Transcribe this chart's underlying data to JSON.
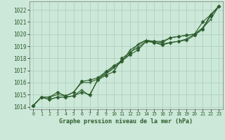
{
  "xlabel": "Graphe pression niveau de la mer (hPa)",
  "ylim": [
    1013.8,
    1022.7
  ],
  "xlim": [
    -0.5,
    23.5
  ],
  "yticks": [
    1014,
    1015,
    1016,
    1017,
    1018,
    1019,
    1020,
    1021,
    1022
  ],
  "xticks": [
    0,
    1,
    2,
    3,
    4,
    5,
    6,
    7,
    8,
    9,
    10,
    11,
    12,
    13,
    14,
    15,
    16,
    17,
    18,
    19,
    20,
    21,
    22,
    23
  ],
  "background_color": "#cce8d8",
  "grid_color": "#aaccbb",
  "line_color": "#2d5e2d",
  "series": [
    [
      1014.1,
      1014.8,
      1014.8,
      1015.2,
      1014.9,
      1015.2,
      1016.1,
      1016.2,
      1016.4,
      1016.9,
      1017.4,
      1017.8,
      1018.3,
      1018.7,
      1019.4,
      1019.4,
      1019.4,
      1019.7,
      1019.8,
      1019.9,
      1020.0,
      1021.0,
      1021.6,
      1022.3
    ],
    [
      1014.1,
      1014.8,
      1014.8,
      1015.0,
      1014.9,
      1015.2,
      1016.0,
      1016.0,
      1016.3,
      1016.8,
      1017.3,
      1017.7,
      1018.7,
      1019.1,
      1019.5,
      1019.4,
      1019.3,
      1019.7,
      1019.8,
      1019.9,
      1020.0,
      1020.5,
      1021.2,
      1022.3
    ],
    [
      1014.1,
      1014.8,
      1014.6,
      1014.8,
      1014.8,
      1014.9,
      1015.2,
      1015.0,
      1016.2,
      1016.6,
      1016.9,
      1018.0,
      1018.5,
      1018.9,
      1019.4,
      1019.3,
      1019.1,
      1019.3,
      1019.4,
      1019.5,
      1019.9,
      1020.4,
      1021.5,
      1022.3
    ],
    [
      1014.1,
      1014.8,
      1014.6,
      1014.8,
      1014.8,
      1014.9,
      1015.4,
      1014.9,
      1016.3,
      1016.7,
      1017.2,
      1017.8,
      1018.4,
      1019.2,
      1019.5,
      1019.3,
      1019.2,
      1019.3,
      1019.4,
      1019.6,
      1020.0,
      1020.5,
      1021.6,
      1022.3
    ]
  ],
  "marker_configs": [
    {
      "marker": "D",
      "markersize": 2.5
    },
    {
      "marker": "+",
      "markersize": 3.5
    },
    {
      "marker": "D",
      "markersize": 2.5
    },
    {
      "marker": "+",
      "markersize": 3.5
    }
  ],
  "linewidth": 0.8,
  "ytick_fontsize": 5.5,
  "xtick_fontsize": 4.8,
  "xlabel_fontsize": 6.0
}
